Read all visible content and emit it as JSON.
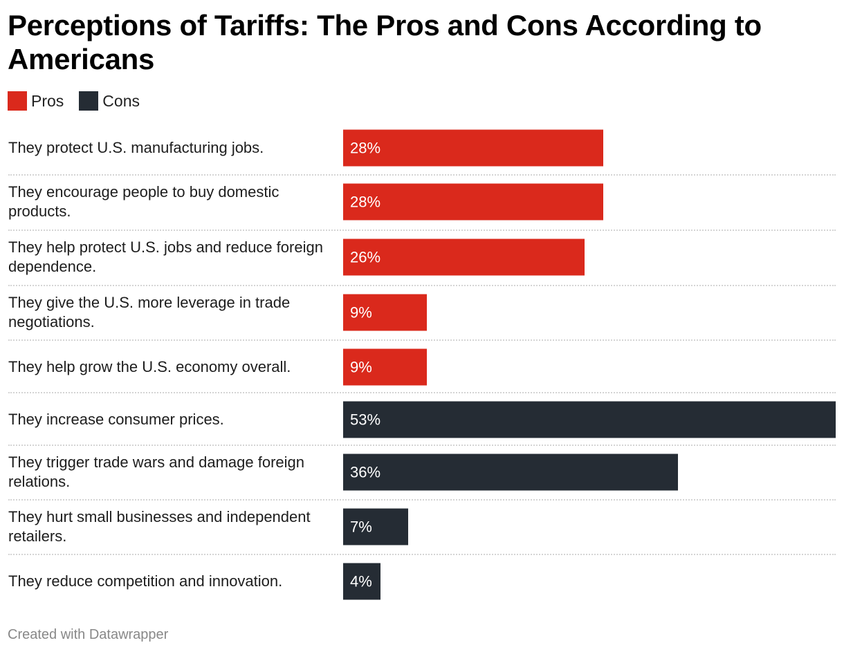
{
  "chart_data": {
    "type": "bar",
    "orientation": "horizontal",
    "title": "Perceptions of Tariffs: The Pros and Cons According to Americans",
    "legend": [
      {
        "name": "Pros",
        "color": "#da291c"
      },
      {
        "name": "Cons",
        "color": "#252c34"
      }
    ],
    "legend_position": "top-left",
    "unit": "%",
    "xlim": [
      0,
      53
    ],
    "grid": false,
    "categories": [
      "They protect U.S. manufacturing jobs.",
      "They encourage people to buy domestic products.",
      "They help protect U.S. jobs and reduce foreign dependence.",
      "They give the U.S. more leverage in trade negotiations.",
      "They help grow the U.S. economy overall.",
      "They increase consumer prices.",
      "They trigger trade wars and damage foreign relations.",
      "They hurt small businesses and independent retailers.",
      "They reduce competition and innovation."
    ],
    "rows": [
      {
        "label": "They protect U.S. manufacturing jobs.",
        "value": 28,
        "display": "28%",
        "group": "Pros"
      },
      {
        "label": "They encourage people to buy domestic products.",
        "value": 28,
        "display": "28%",
        "group": "Pros"
      },
      {
        "label": "They help protect U.S. jobs and reduce foreign dependence.",
        "value": 26,
        "display": "26%",
        "group": "Pros"
      },
      {
        "label": "They give the U.S. more leverage in trade negotiations.",
        "value": 9,
        "display": "9%",
        "group": "Pros"
      },
      {
        "label": "They help grow the U.S. economy overall.",
        "value": 9,
        "display": "9%",
        "group": "Pros"
      },
      {
        "label": "They increase consumer prices.",
        "value": 53,
        "display": "53%",
        "group": "Cons"
      },
      {
        "label": "They trigger trade wars and damage foreign relations.",
        "value": 36,
        "display": "36%",
        "group": "Cons"
      },
      {
        "label": "They hurt small businesses and independent retailers.",
        "value": 7,
        "display": "7%",
        "group": "Cons"
      },
      {
        "label": "They reduce competition and innovation.",
        "value": 4,
        "display": "4%",
        "group": "Cons"
      }
    ]
  },
  "footer": "Created with Datawrapper"
}
